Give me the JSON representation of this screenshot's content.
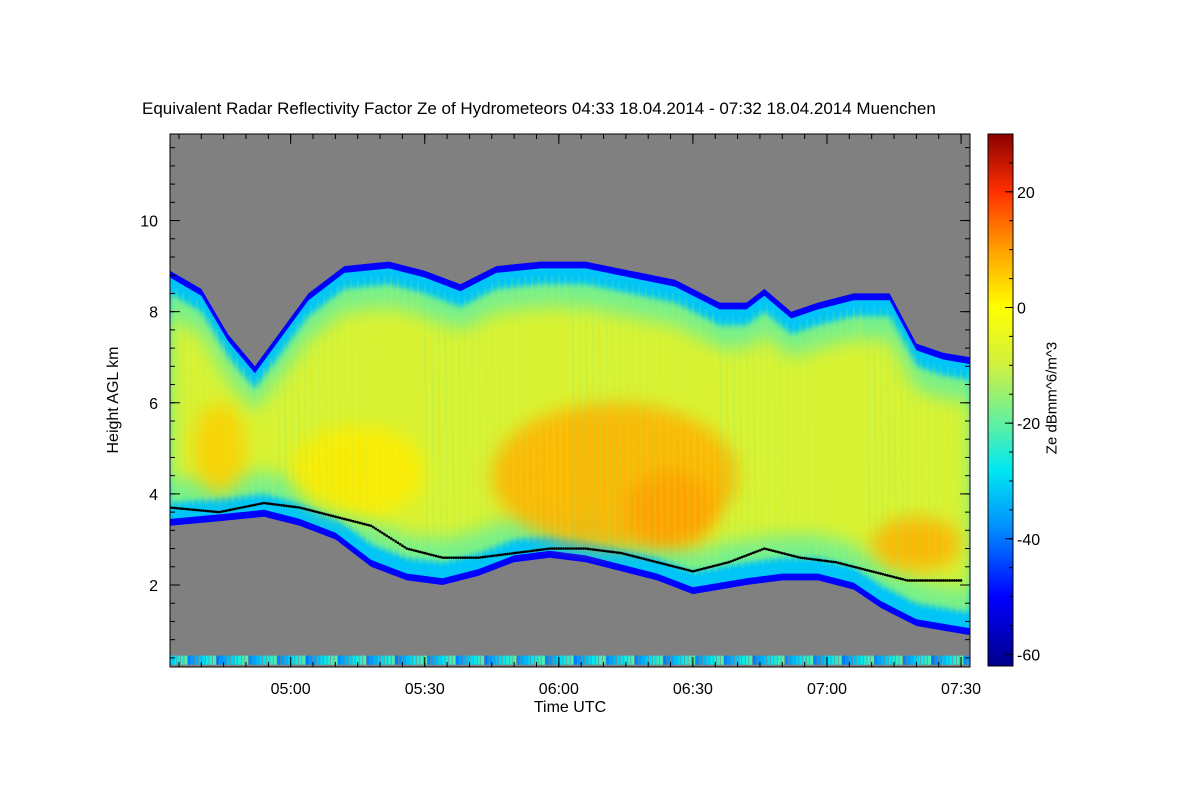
{
  "chart_data": {
    "type": "heatmap",
    "title": "Equivalent Radar Reflectivity Factor Ze of Hydrometeors   04:33 18.04.2014 - 07:32 18.04.2014 Muenchen",
    "xlabel": "Time UTC",
    "ylabel": "Height AGL km",
    "x_range_minutes_utc": [
      273,
      452
    ],
    "xlim": [
      "04:33",
      "07:32"
    ],
    "ylim": [
      0.2,
      11.9
    ],
    "x_ticks": [
      {
        "minute": 300,
        "label": "05:00"
      },
      {
        "minute": 330,
        "label": "05:30"
      },
      {
        "minute": 360,
        "label": "06:00"
      },
      {
        "minute": 390,
        "label": "06:30"
      },
      {
        "minute": 420,
        "label": "07:00"
      },
      {
        "minute": 450,
        "label": "07:30"
      }
    ],
    "y_ticks": [
      {
        "value": 2,
        "label": "2"
      },
      {
        "value": 4,
        "label": "4"
      },
      {
        "value": 6,
        "label": "6"
      },
      {
        "value": 8,
        "label": "8"
      },
      {
        "value": 10,
        "label": "10"
      }
    ],
    "colorbar": {
      "label": "Ze dBmm^6/m^3",
      "range": [
        -62,
        30
      ],
      "ticks": [
        {
          "value": 20,
          "label": "20"
        },
        {
          "value": 0,
          "label": "0"
        },
        {
          "value": -20,
          "label": "-20"
        },
        {
          "value": -40,
          "label": "-40"
        },
        {
          "value": -60,
          "label": "-60"
        }
      ],
      "colormap_stops": [
        {
          "value": -62,
          "color": "#00008b"
        },
        {
          "value": -50,
          "color": "#0000ff"
        },
        {
          "value": -38,
          "color": "#0090ff"
        },
        {
          "value": -28,
          "color": "#00e8f0"
        },
        {
          "value": -20,
          "color": "#60f0a0"
        },
        {
          "value": -10,
          "color": "#d0f040"
        },
        {
          "value": 0,
          "color": "#ffff00"
        },
        {
          "value": 10,
          "color": "#ffa000"
        },
        {
          "value": 20,
          "color": "#ff3000"
        },
        {
          "value": 30,
          "color": "#8b0000"
        }
      ]
    },
    "no_data_color": "#808080",
    "cloud_top_km": [
      {
        "t": 273,
        "h": 8.9
      },
      {
        "t": 280,
        "h": 8.5
      },
      {
        "t": 286,
        "h": 7.5
      },
      {
        "t": 292,
        "h": 6.8
      },
      {
        "t": 298,
        "h": 7.6
      },
      {
        "t": 304,
        "h": 8.4
      },
      {
        "t": 312,
        "h": 9.0
      },
      {
        "t": 322,
        "h": 9.1
      },
      {
        "t": 330,
        "h": 8.9
      },
      {
        "t": 338,
        "h": 8.6
      },
      {
        "t": 346,
        "h": 9.0
      },
      {
        "t": 356,
        "h": 9.1
      },
      {
        "t": 366,
        "h": 9.1
      },
      {
        "t": 376,
        "h": 8.9
      },
      {
        "t": 386,
        "h": 8.7
      },
      {
        "t": 396,
        "h": 8.2
      },
      {
        "t": 402,
        "h": 8.2
      },
      {
        "t": 406,
        "h": 8.5
      },
      {
        "t": 412,
        "h": 8.0
      },
      {
        "t": 418,
        "h": 8.2
      },
      {
        "t": 426,
        "h": 8.4
      },
      {
        "t": 434,
        "h": 8.4
      },
      {
        "t": 440,
        "h": 7.3
      },
      {
        "t": 446,
        "h": 7.1
      },
      {
        "t": 452,
        "h": 7.0
      }
    ],
    "cloud_base_km": [
      {
        "t": 273,
        "h": 3.3
      },
      {
        "t": 284,
        "h": 3.4
      },
      {
        "t": 294,
        "h": 3.5
      },
      {
        "t": 302,
        "h": 3.3
      },
      {
        "t": 310,
        "h": 3.0
      },
      {
        "t": 318,
        "h": 2.4
      },
      {
        "t": 326,
        "h": 2.1
      },
      {
        "t": 334,
        "h": 2.0
      },
      {
        "t": 342,
        "h": 2.2
      },
      {
        "t": 350,
        "h": 2.5
      },
      {
        "t": 358,
        "h": 2.6
      },
      {
        "t": 366,
        "h": 2.5
      },
      {
        "t": 374,
        "h": 2.3
      },
      {
        "t": 382,
        "h": 2.1
      },
      {
        "t": 390,
        "h": 1.8
      },
      {
        "t": 396,
        "h": 1.9
      },
      {
        "t": 402,
        "h": 2.0
      },
      {
        "t": 410,
        "h": 2.1
      },
      {
        "t": 418,
        "h": 2.1
      },
      {
        "t": 426,
        "h": 1.9
      },
      {
        "t": 432,
        "h": 1.5
      },
      {
        "t": 440,
        "h": 1.1
      },
      {
        "t": 446,
        "h": 1.0
      },
      {
        "t": 452,
        "h": 0.9
      }
    ],
    "melting_layer_km": [
      {
        "t": 273,
        "h": 3.7
      },
      {
        "t": 284,
        "h": 3.6
      },
      {
        "t": 294,
        "h": 3.8
      },
      {
        "t": 302,
        "h": 3.7
      },
      {
        "t": 310,
        "h": 3.5
      },
      {
        "t": 318,
        "h": 3.3
      },
      {
        "t": 326,
        "h": 2.8
      },
      {
        "t": 334,
        "h": 2.6
      },
      {
        "t": 342,
        "h": 2.6
      },
      {
        "t": 350,
        "h": 2.7
      },
      {
        "t": 358,
        "h": 2.8
      },
      {
        "t": 366,
        "h": 2.8
      },
      {
        "t": 374,
        "h": 2.7
      },
      {
        "t": 382,
        "h": 2.5
      },
      {
        "t": 390,
        "h": 2.3
      },
      {
        "t": 398,
        "h": 2.5
      },
      {
        "t": 406,
        "h": 2.8
      },
      {
        "t": 414,
        "h": 2.6
      },
      {
        "t": 422,
        "h": 2.5
      },
      {
        "t": 430,
        "h": 2.3
      },
      {
        "t": 438,
        "h": 2.1
      },
      {
        "t": 446,
        "h": 2.1
      },
      {
        "t": 450,
        "h": 2.1
      }
    ],
    "reflectivity_core_dbz": [
      {
        "t_start": 278,
        "t_end": 290,
        "h_low": 4.0,
        "h_high": 6.0,
        "ze": 5
      },
      {
        "t_start": 300,
        "t_end": 330,
        "h_low": 3.5,
        "h_high": 5.5,
        "ze": 2
      },
      {
        "t_start": 345,
        "t_end": 400,
        "h_low": 2.8,
        "h_high": 6.0,
        "ze": 8
      },
      {
        "t_start": 375,
        "t_end": 395,
        "h_low": 2.8,
        "h_high": 4.5,
        "ze": 10
      },
      {
        "t_start": 430,
        "t_end": 450,
        "h_low": 2.3,
        "h_high": 3.5,
        "ze": 8
      }
    ]
  }
}
